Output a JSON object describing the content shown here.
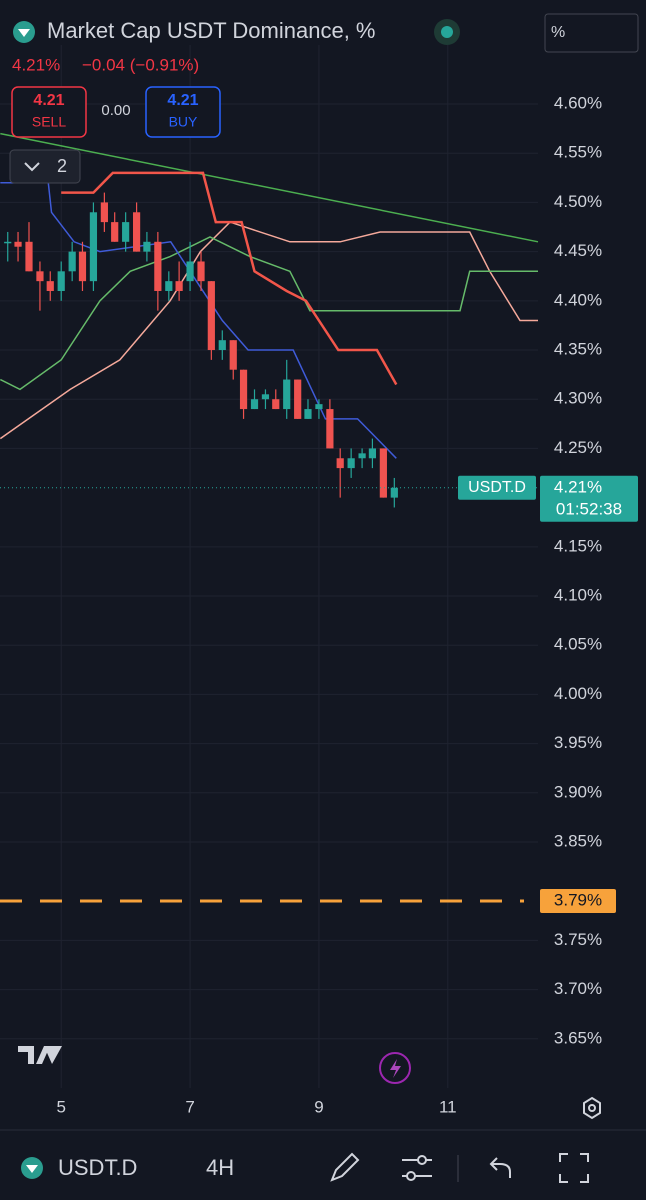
{
  "header": {
    "title": "Market Cap USDT Dominance, %",
    "price": "4.21%",
    "change": "−0.04 (−0.91%)",
    "sell_price": "4.21",
    "sell_label": "SELL",
    "spread": "0.00",
    "buy_price": "4.21",
    "buy_label": "BUY",
    "indicators_count": "2",
    "unit_button": "%"
  },
  "toolbar": {
    "symbol": "USDT.D",
    "interval": "4H"
  },
  "chart_data": {
    "type": "candlestick",
    "x": [
      4.17,
      4.33,
      4.5,
      4.67,
      4.83,
      5,
      5.17,
      5.33,
      5.5,
      5.67,
      5.83,
      6,
      6.17,
      6.33,
      6.5,
      6.67,
      6.83,
      7,
      7.17,
      7.33,
      7.5,
      7.67,
      7.83,
      8,
      8.17,
      8.33,
      8.5,
      8.67,
      8.83,
      9,
      9.17,
      9.33,
      9.5,
      9.67,
      9.83,
      10,
      10.17
    ],
    "open": [
      4.46,
      4.46,
      4.46,
      4.43,
      4.42,
      4.41,
      4.43,
      4.45,
      4.42,
      4.5,
      4.48,
      4.46,
      4.49,
      4.45,
      4.46,
      4.41,
      4.42,
      4.42,
      4.44,
      4.42,
      4.35,
      4.36,
      4.33,
      4.29,
      4.3,
      4.3,
      4.29,
      4.32,
      4.28,
      4.29,
      4.29,
      4.24,
      4.23,
      4.24,
      4.24,
      4.25,
      4.2
    ],
    "high": [
      4.47,
      4.47,
      4.48,
      4.44,
      4.43,
      4.44,
      4.46,
      4.46,
      4.5,
      4.51,
      4.49,
      4.49,
      4.5,
      4.47,
      4.47,
      4.43,
      4.44,
      4.46,
      4.45,
      4.42,
      4.37,
      4.36,
      4.33,
      4.31,
      4.31,
      4.31,
      4.34,
      4.32,
      4.3,
      4.3,
      4.3,
      4.25,
      4.25,
      4.25,
      4.26,
      4.25,
      4.22
    ],
    "low": [
      4.44,
      4.44,
      4.43,
      4.39,
      4.4,
      4.4,
      4.42,
      4.41,
      4.41,
      4.47,
      4.46,
      4.45,
      4.45,
      4.44,
      4.39,
      4.4,
      4.4,
      4.41,
      4.41,
      4.34,
      4.34,
      4.32,
      4.28,
      4.29,
      4.29,
      4.29,
      4.28,
      4.28,
      4.28,
      4.28,
      4.25,
      4.2,
      4.22,
      4.23,
      4.23,
      4.2,
      4.19
    ],
    "close": [
      4.46,
      4.455,
      4.43,
      4.42,
      4.41,
      4.43,
      4.45,
      4.42,
      4.49,
      4.48,
      4.46,
      4.48,
      4.45,
      4.46,
      4.41,
      4.42,
      4.41,
      4.44,
      4.42,
      4.35,
      4.36,
      4.33,
      4.29,
      4.3,
      4.305,
      4.29,
      4.32,
      4.28,
      4.29,
      4.295,
      4.25,
      4.23,
      4.24,
      4.245,
      4.25,
      4.2,
      4.21
    ],
    "up_color": "#26a69a",
    "down_color": "#ef5350",
    "lines": [
      {
        "color": "#4caf50",
        "x": [
          4.054,
          12.4
        ],
        "values": [
          4.57,
          4.46
        ]
      },
      {
        "color": "#f5a99b",
        "x": [
          4.054,
          5.14,
          5.91,
          6.69,
          7.16,
          7.62,
          8.55,
          9.33,
          9.95,
          11.34,
          11.65,
          12.12,
          12.4
        ],
        "values": [
          4.26,
          4.31,
          4.34,
          4.4,
          4.45,
          4.48,
          4.46,
          4.46,
          4.47,
          4.47,
          4.43,
          4.38,
          4.38
        ]
      },
      {
        "color": "#66bb6a",
        "x": [
          4.054,
          4.36,
          5,
          5.6,
          6.07,
          6.69,
          7.31,
          7.93,
          8.55,
          8.86,
          11.19,
          11.34,
          12.4
        ],
        "values": [
          4.32,
          4.31,
          4.34,
          4.4,
          4.43,
          4.445,
          4.465,
          4.445,
          4.43,
          4.39,
          4.39,
          4.43,
          4.43
        ]
      },
      {
        "color": "#3f5bd8",
        "x": [
          4.054,
          4.8,
          4.85,
          5.2,
          5.6,
          6.7,
          7.1,
          7.5,
          7.9,
          8.6,
          9.1,
          9.6,
          10.2
        ],
        "values": [
          4.52,
          4.52,
          4.49,
          4.46,
          4.45,
          4.46,
          4.42,
          4.38,
          4.35,
          4.35,
          4.28,
          4.28,
          4.24
        ]
      },
      {
        "color": "#f2564a",
        "x": [
          5,
          5.5,
          5.8,
          7.2,
          7.4,
          7.8,
          8,
          8.5,
          8.8,
          9.3,
          9.9,
          10.2
        ],
        "values": [
          4.51,
          4.51,
          4.53,
          4.53,
          4.48,
          4.48,
          4.43,
          4.41,
          4.4,
          4.35,
          4.35,
          4.315
        ]
      }
    ],
    "hline": {
      "value": 3.79,
      "label": "3.79%",
      "color": "#f7a23b"
    },
    "last_price": {
      "value": 4.21,
      "label": "4.21%",
      "symbol": "USDT.D",
      "countdown": "01:52:38",
      "color": "#26a69a"
    },
    "xlim": [
      4.05,
      12.4
    ],
    "xticks": [
      5,
      7,
      9,
      11
    ],
    "ylim": [
      3.6,
      4.66
    ],
    "yticks": [
      {
        "value": 3.65,
        "label": "3.65%"
      },
      {
        "value": 3.7,
        "label": "3.70%"
      },
      {
        "value": 3.75,
        "label": "3.75%"
      },
      {
        "value": 3.85,
        "label": "3.85%"
      },
      {
        "value": 3.9,
        "label": "3.90%"
      },
      {
        "value": 3.95,
        "label": "3.95%"
      },
      {
        "value": 4.0,
        "label": "4.00%"
      },
      {
        "value": 4.05,
        "label": "4.05%"
      },
      {
        "value": 4.1,
        "label": "4.10%"
      },
      {
        "value": 4.15,
        "label": "4.15%"
      },
      {
        "value": 4.25,
        "label": "4.25%"
      },
      {
        "value": 4.3,
        "label": "4.30%"
      },
      {
        "value": 4.35,
        "label": "4.35%"
      },
      {
        "value": 4.4,
        "label": "4.40%"
      },
      {
        "value": 4.45,
        "label": "4.45%"
      },
      {
        "value": 4.5,
        "label": "4.50%"
      },
      {
        "value": 4.55,
        "label": "4.55%"
      },
      {
        "value": 4.6,
        "label": "4.60%"
      }
    ],
    "grid": true
  }
}
